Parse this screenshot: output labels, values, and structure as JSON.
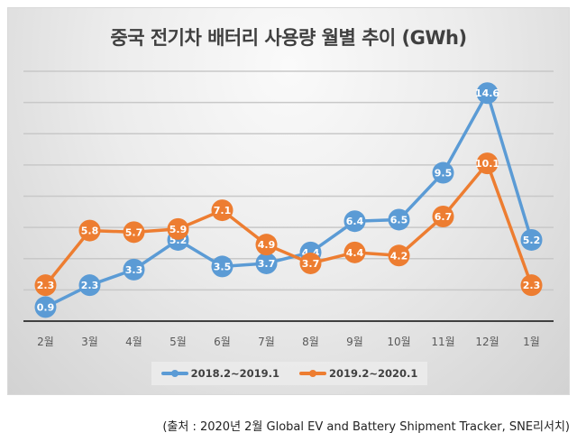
{
  "chart_data": {
    "type": "line",
    "title": "중국 전기차 배터리 사용량 월별 추이 (GWh)",
    "xlabel": "",
    "ylabel": "",
    "categories": [
      "2월",
      "3월",
      "4월",
      "5월",
      "6월",
      "7월",
      "8월",
      "9월",
      "10월",
      "11월",
      "12월",
      "1월"
    ],
    "ylim": [
      0,
      16
    ],
    "gridlines": [
      2,
      4,
      6,
      8,
      10,
      12,
      14,
      16
    ],
    "grid": true,
    "y_axis_labels_visible": false,
    "legend_position": "bottom",
    "series": [
      {
        "name": "2018.2~2019.1",
        "color": "#5b9bd5",
        "values": [
          0.9,
          2.3,
          3.3,
          5.2,
          3.5,
          3.7,
          4.4,
          6.4,
          6.5,
          9.5,
          14.6,
          5.2
        ]
      },
      {
        "name": "2019.2~2020.1",
        "color": "#ed7d31",
        "values": [
          2.3,
          5.8,
          5.7,
          5.9,
          7.1,
          4.9,
          3.7,
          4.4,
          4.2,
          6.7,
          10.1,
          2.3
        ]
      }
    ]
  },
  "source_note": "(출처 : 2020년 2월  Global EV and Battery Shipment Tracker, SNE리서치)"
}
